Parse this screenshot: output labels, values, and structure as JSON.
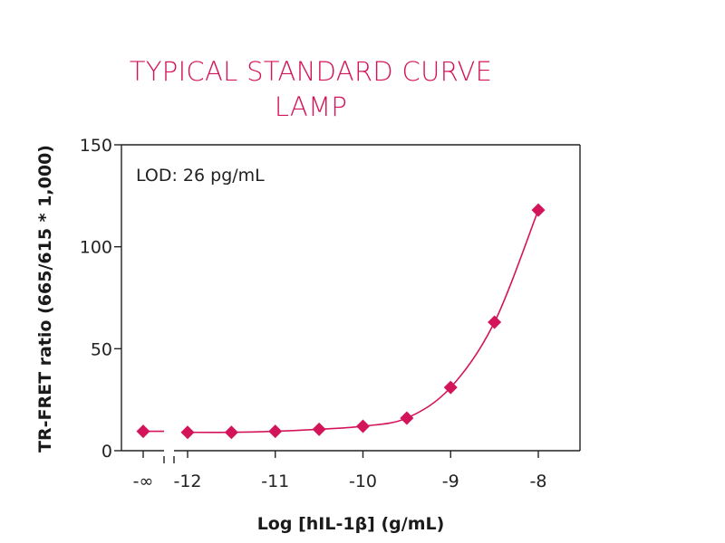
{
  "chart_data": {
    "type": "scatter",
    "title_line1": "TYPICAL STANDARD CURVE",
    "title_line2": "LAMP",
    "xlabel": "Log [hIL-1β] (g/mL)",
    "ylabel": "TR-FRET ratio (665/615 * 1,000)",
    "annotation": "LOD: 26 pg/mL",
    "ylim": [
      0,
      150
    ],
    "yticks": [
      0,
      50,
      100,
      150
    ],
    "xlim": [
      -12.5,
      -7.5
    ],
    "xticks": [
      {
        "value": "-inf",
        "label": "-∞"
      },
      {
        "value": -12,
        "label": "-12"
      },
      {
        "value": -11,
        "label": "-11"
      },
      {
        "value": -10,
        "label": "-10"
      },
      {
        "value": -9,
        "label": "-9"
      },
      {
        "value": -8,
        "label": "-8"
      }
    ],
    "series": [
      {
        "name": "LAMP",
        "marker": "diamond",
        "color": "#d4145a",
        "points": [
          {
            "x": "-inf",
            "y": 9.5
          },
          {
            "x": -12,
            "y": 9
          },
          {
            "x": -11.5,
            "y": 9
          },
          {
            "x": -11,
            "y": 9.5
          },
          {
            "x": -10.5,
            "y": 10.5
          },
          {
            "x": -10,
            "y": 12
          },
          {
            "x": -9.5,
            "y": 16
          },
          {
            "x": -9,
            "y": 31
          },
          {
            "x": -8.5,
            "y": 63
          },
          {
            "x": -8,
            "y": 118
          }
        ]
      }
    ]
  }
}
